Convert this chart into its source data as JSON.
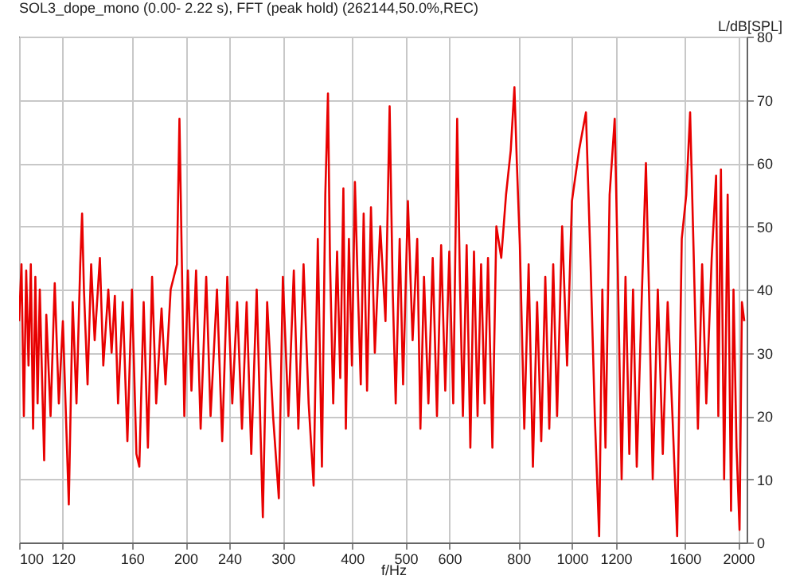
{
  "chart_data": {
    "type": "line",
    "title": "SOL3_dope_mono (0.00- 2.22 s), FFT (peak hold) (262144,50.0%,REC)",
    "xlabel": "f/Hz",
    "ylabel": "L/dB[SPL]",
    "log": "x",
    "grid": true,
    "marker": "none",
    "xlim": [
      100,
      2070
    ],
    "xticks": [
      100,
      120,
      160,
      200,
      240,
      300,
      400,
      500,
      600,
      800,
      1000,
      1200,
      1600,
      2000
    ],
    "ylim": [
      0,
      80
    ],
    "yticks": [
      0,
      10,
      20,
      30,
      40,
      50,
      60,
      70,
      80
    ],
    "x": [
      100,
      101,
      102,
      103,
      104,
      105,
      106,
      107,
      108,
      109,
      111,
      112,
      114,
      116,
      118,
      120,
      123,
      125,
      127,
      129,
      130,
      131,
      133,
      135,
      137,
      140,
      142,
      145,
      147,
      149,
      151,
      154,
      157,
      160,
      163,
      165,
      168,
      171,
      174,
      177,
      181,
      184,
      188,
      193,
      195,
      197,
      199,
      202,
      205,
      209,
      213,
      218,
      222,
      228,
      233,
      238,
      243,
      248,
      253,
      258,
      263,
      269,
      276,
      281,
      288,
      295,
      300,
      307,
      314,
      320,
      327,
      334,
      341,
      347,
      353,
      358,
      362,
      365,
      370,
      376,
      381,
      386,
      390,
      395,
      400,
      405,
      410,
      415,
      420,
      426,
      433,
      440,
      450,
      460,
      468,
      474,
      480,
      488,
      495,
      505,
      515,
      525,
      532,
      540,
      550,
      560,
      570,
      580,
      590,
      600,
      610,
      620,
      627,
      635,
      645,
      655,
      665,
      675,
      685,
      695,
      705,
      718,
      730,
      745,
      760,
      775,
      787,
      795,
      805,
      820,
      835,
      850,
      865,
      880,
      895,
      910,
      925,
      940,
      960,
      980,
      1000,
      1030,
      1060,
      1080,
      1100,
      1120,
      1135,
      1150,
      1170,
      1195,
      1210,
      1230,
      1250,
      1270,
      1290,
      1310,
      1340,
      1361,
      1380,
      1400,
      1430,
      1460,
      1490,
      1520,
      1550,
      1580,
      1610,
      1636,
      1660,
      1690,
      1720,
      1750,
      1790,
      1823,
      1840,
      1860,
      1885,
      1913,
      1940,
      1960,
      1985,
      2010,
      2030,
      2050
    ],
    "series": [
      {
        "color": "#e80000",
        "values": [
          35,
          44,
          20,
          43,
          28,
          44,
          18,
          42,
          22,
          40,
          13,
          36,
          20,
          41,
          22,
          35,
          6,
          38,
          22,
          44,
          52,
          40,
          25,
          44,
          32,
          45,
          28,
          40,
          30,
          39,
          22,
          38,
          16,
          40,
          14,
          12,
          38,
          15,
          42,
          22,
          37,
          25,
          40,
          44,
          67,
          44,
          20,
          43,
          24,
          43,
          18,
          42,
          20,
          40,
          16,
          42,
          22,
          38,
          18,
          38,
          14,
          40,
          4,
          38,
          20,
          7,
          42,
          20,
          43,
          18,
          44,
          22,
          9,
          48,
          12,
          55,
          71,
          45,
          22,
          46,
          26,
          56,
          18,
          48,
          28,
          57,
          40,
          25,
          52,
          24,
          53,
          30,
          50,
          35,
          69,
          40,
          22,
          48,
          25,
          54,
          32,
          48,
          18,
          42,
          22,
          45,
          20,
          47,
          24,
          46,
          22,
          67,
          42,
          20,
          47,
          15,
          46,
          20,
          44,
          22,
          45,
          15,
          50,
          45,
          55,
          62,
          72,
          60,
          47,
          18,
          44,
          12,
          38,
          16,
          42,
          18,
          44,
          20,
          50,
          28,
          54,
          62,
          68,
          45,
          20,
          1,
          40,
          15,
          55,
          67,
          44,
          10,
          42,
          14,
          40,
          12,
          41,
          60,
          38,
          10,
          40,
          14,
          38,
          20,
          1,
          48,
          55,
          68,
          46,
          18,
          44,
          22,
          45,
          58,
          20,
          59,
          10,
          55,
          5,
          40,
          15,
          2,
          38,
          35
        ]
      }
    ]
  }
}
